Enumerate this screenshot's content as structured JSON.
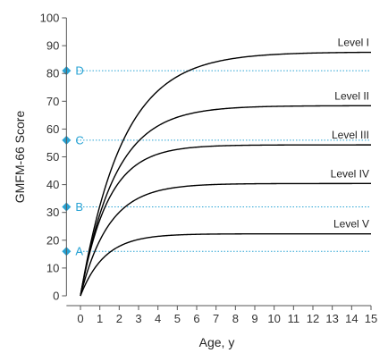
{
  "chart_data": {
    "type": "line",
    "xlabel": "Age, y",
    "ylabel": "GMFM-66 Score",
    "xlim": [
      -0.4,
      15
    ],
    "ylim": [
      0,
      100
    ],
    "x_ticks": [
      0,
      1,
      2,
      3,
      4,
      5,
      6,
      7,
      8,
      9,
      10,
      11,
      12,
      13,
      14,
      15
    ],
    "y_ticks": [
      0,
      10,
      20,
      30,
      40,
      50,
      60,
      70,
      80,
      90,
      100
    ],
    "grid": false,
    "series": [
      {
        "name": "Level I",
        "limit": 87.7,
        "rate": 0.46
      },
      {
        "name": "Level II",
        "limit": 68.4,
        "rate": 0.56
      },
      {
        "name": "Level III",
        "limit": 54.3,
        "rate": 0.7
      },
      {
        "name": "Level IV",
        "limit": 40.4,
        "rate": 0.68
      },
      {
        "name": "Level V",
        "limit": 22.3,
        "rate": 0.8
      }
    ],
    "reference_lines": [
      {
        "label": "A",
        "y": 16
      },
      {
        "label": "B",
        "y": 32
      },
      {
        "label": "C",
        "y": 56
      },
      {
        "label": "D",
        "y": 81
      }
    ],
    "colors": {
      "curve": "#000000",
      "reference": "#29a3d4",
      "axis": "#555555"
    }
  }
}
